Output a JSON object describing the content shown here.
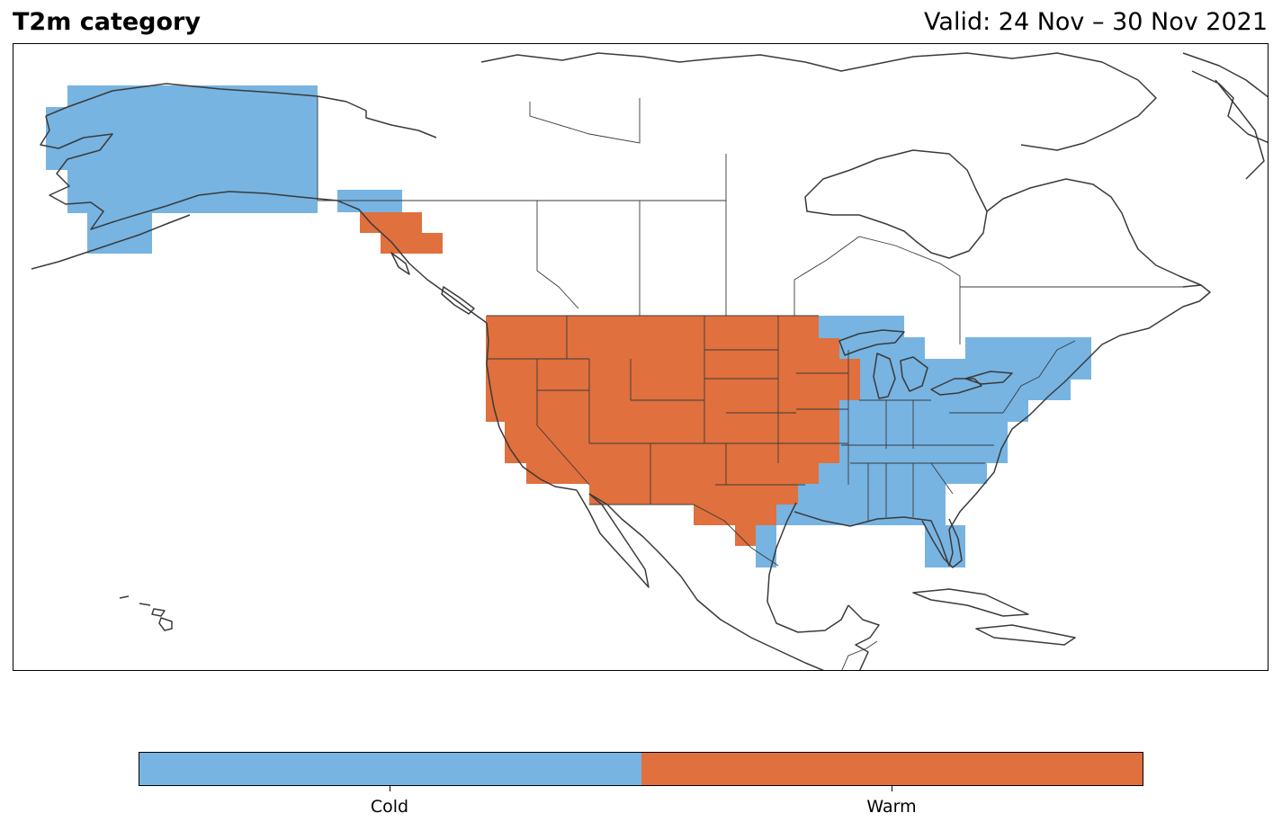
{
  "header": {
    "title": "T2m category",
    "valid": "Valid: 24 Nov – 30 Nov 2021"
  },
  "map": {
    "projection": "PlateCarree",
    "extent_lon": [
      -170,
      -50
    ],
    "extent_lat": [
      10,
      75
    ],
    "variable": "T2m category",
    "colors": {
      "cold": "#77b4e2",
      "warm": "#e0703d",
      "coastline": "#3a3a3a",
      "border": "#3a3a3a"
    }
  },
  "legend": {
    "categories": [
      {
        "label": "Cold",
        "color": "#77b4e2"
      },
      {
        "label": "Warm",
        "color": "#e0703d"
      }
    ]
  }
}
